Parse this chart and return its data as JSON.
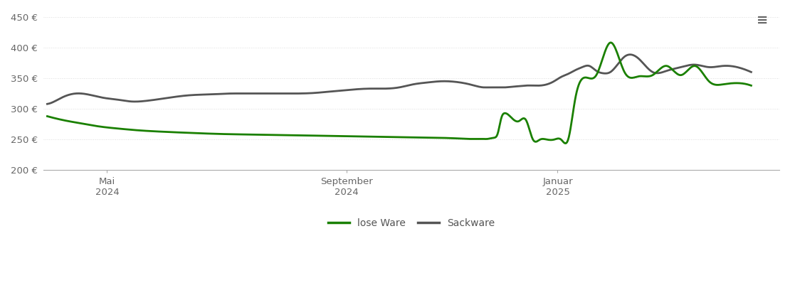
{
  "background_color": "#ffffff",
  "plot_bg_color": "#ffffff",
  "grid_color": "#dddddd",
  "grid_style": "dotted",
  "ylim": [
    200,
    460
  ],
  "yticks": [
    200,
    250,
    300,
    350,
    400,
    450
  ],
  "ytick_labels": [
    "200 €",
    "250 €",
    "300 €",
    "350 €",
    "400 €",
    "450 €"
  ],
  "xtick_labels": [
    "Mai\n2024",
    "September\n2024",
    "Januar\n2025"
  ],
  "legend_labels": [
    "lose Ware",
    "Sackware"
  ],
  "legend_colors": [
    "#1a8000",
    "#555555"
  ],
  "line_lose_color": "#1a8000",
  "line_sack_color": "#555555",
  "line_width": 2.0,
  "lose_x": [
    0.0,
    0.01,
    0.03,
    0.05,
    0.07,
    0.1,
    0.13,
    0.16,
    0.2,
    0.25,
    0.3,
    0.35,
    0.4,
    0.45,
    0.5,
    0.55,
    0.58,
    0.6,
    0.61,
    0.62,
    0.625,
    0.63,
    0.635,
    0.64,
    0.645,
    0.65,
    0.66,
    0.67,
    0.68,
    0.69,
    0.7,
    0.71,
    0.72,
    0.73,
    0.74,
    0.75,
    0.76,
    0.78,
    0.8,
    0.82,
    0.84,
    0.86,
    0.88,
    0.9,
    0.92,
    0.94,
    0.96,
    0.98,
    1.0
  ],
  "lose_y": [
    288,
    285,
    280,
    276,
    272,
    268,
    265,
    263,
    261,
    259,
    258,
    257,
    256,
    255,
    254,
    253,
    252,
    251,
    251,
    251,
    251,
    252,
    253,
    260,
    285,
    293,
    285,
    280,
    282,
    250,
    250,
    250,
    250,
    250,
    250,
    316,
    349,
    355,
    408,
    360,
    353,
    355,
    370,
    355,
    370,
    345,
    340,
    342,
    338
  ],
  "sack_x": [
    0.0,
    0.01,
    0.02,
    0.04,
    0.06,
    0.08,
    0.1,
    0.12,
    0.14,
    0.16,
    0.2,
    0.24,
    0.26,
    0.28,
    0.3,
    0.34,
    0.38,
    0.4,
    0.42,
    0.44,
    0.46,
    0.48,
    0.5,
    0.52,
    0.54,
    0.56,
    0.58,
    0.6,
    0.61,
    0.62,
    0.625,
    0.63,
    0.635,
    0.64,
    0.65,
    0.66,
    0.67,
    0.68,
    0.69,
    0.7,
    0.71,
    0.72,
    0.73,
    0.74,
    0.75,
    0.76,
    0.77,
    0.78,
    0.79,
    0.8,
    0.82,
    0.84,
    0.86,
    0.88,
    0.9,
    0.92,
    0.94,
    0.96,
    0.98,
    1.0
  ],
  "sack_y": [
    308,
    312,
    318,
    325,
    323,
    318,
    315,
    312,
    313,
    316,
    322,
    324,
    325,
    325,
    325,
    325,
    326,
    328,
    330,
    332,
    333,
    333,
    335,
    340,
    343,
    345,
    344,
    340,
    337,
    335,
    335,
    335,
    335,
    335,
    335,
    336,
    337,
    338,
    338,
    338,
    340,
    345,
    352,
    357,
    363,
    368,
    370,
    362,
    358,
    360,
    385,
    382,
    360,
    362,
    368,
    372,
    368,
    370,
    368,
    360
  ],
  "xtick_positions": [
    0.085,
    0.425,
    0.725
  ]
}
